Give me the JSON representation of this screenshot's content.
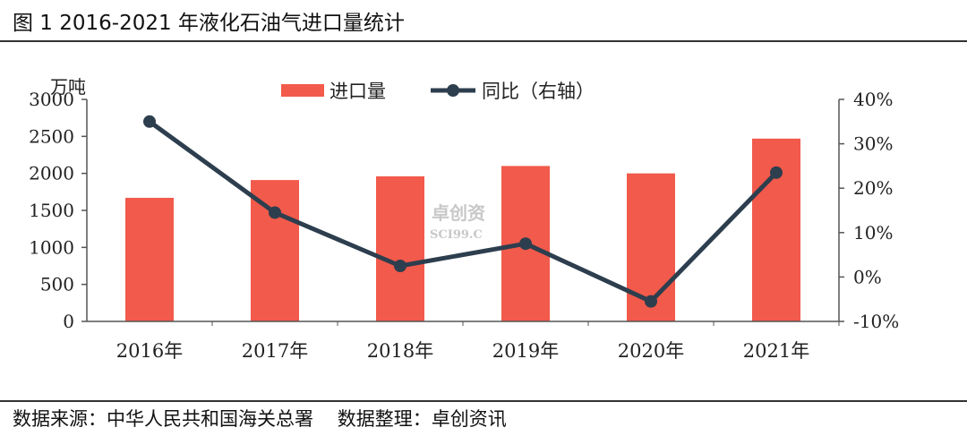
{
  "figure_title": "图 1 2016-2021 年液化石油气进口量统计",
  "source_note": "数据来源：中华人民共和国海关总署    数据整理：卓创资讯",
  "watermark": {
    "text": "卓创资",
    "sub": "SCI99.C"
  },
  "colors": {
    "bars": "#f25a4b",
    "line": "#2d3e4e",
    "axis": "#555555"
  },
  "chart_data": {
    "type": "bar",
    "categories": [
      "2016年",
      "2017年",
      "2018年",
      "2019年",
      "2020年",
      "2021年"
    ],
    "y_unit_label": "万吨",
    "legend": {
      "placement": "top-center"
    },
    "grid": false,
    "y_left": {
      "ylim": [
        0,
        3000
      ],
      "ticks": [
        "0",
        "500",
        "1000",
        "1500",
        "2000",
        "2500",
        "3000"
      ]
    },
    "y_right": {
      "ylim": [
        -10,
        40
      ],
      "ticks": [
        "-10%",
        "0%",
        "10%",
        "20%",
        "30%",
        "40%"
      ]
    },
    "series": [
      {
        "name": "进口量",
        "type": "bar",
        "axis": "left",
        "values": [
          1670,
          1910,
          1960,
          2100,
          2000,
          2470
        ]
      },
      {
        "name": "同比（右轴）",
        "type": "line",
        "axis": "right",
        "values": [
          35,
          14.5,
          2.5,
          7.5,
          -5.5,
          23.5
        ]
      }
    ]
  }
}
